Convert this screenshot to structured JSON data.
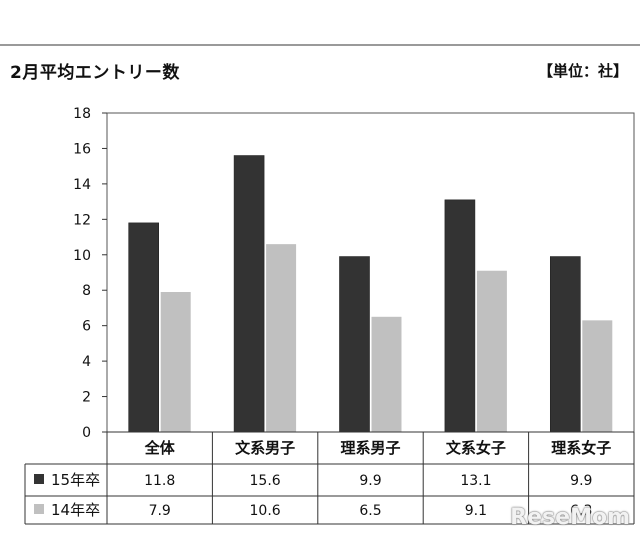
{
  "title": "2月平均エントリー数",
  "unit": "【単位：社】",
  "watermark": "ReseMom",
  "colors": {
    "series1": "#333333",
    "series2": "#c0c0c0",
    "axis": "#333333"
  },
  "chart_data": {
    "type": "bar",
    "title": "2月平均エントリー数",
    "xlabel": "",
    "ylabel": "",
    "ylim": [
      0,
      18
    ],
    "yticks": [
      0,
      2,
      4,
      6,
      8,
      10,
      12,
      14,
      16,
      18
    ],
    "grid": false,
    "legend": "data-table-left",
    "categories": [
      "全体",
      "文系男子",
      "理系男子",
      "文系女子",
      "理系女子"
    ],
    "series": [
      {
        "name": "15年卒",
        "values": [
          11.8,
          15.6,
          9.9,
          13.1,
          9.9
        ]
      },
      {
        "name": "14年卒",
        "values": [
          7.9,
          10.6,
          6.5,
          9.1,
          6.3
        ]
      }
    ]
  }
}
